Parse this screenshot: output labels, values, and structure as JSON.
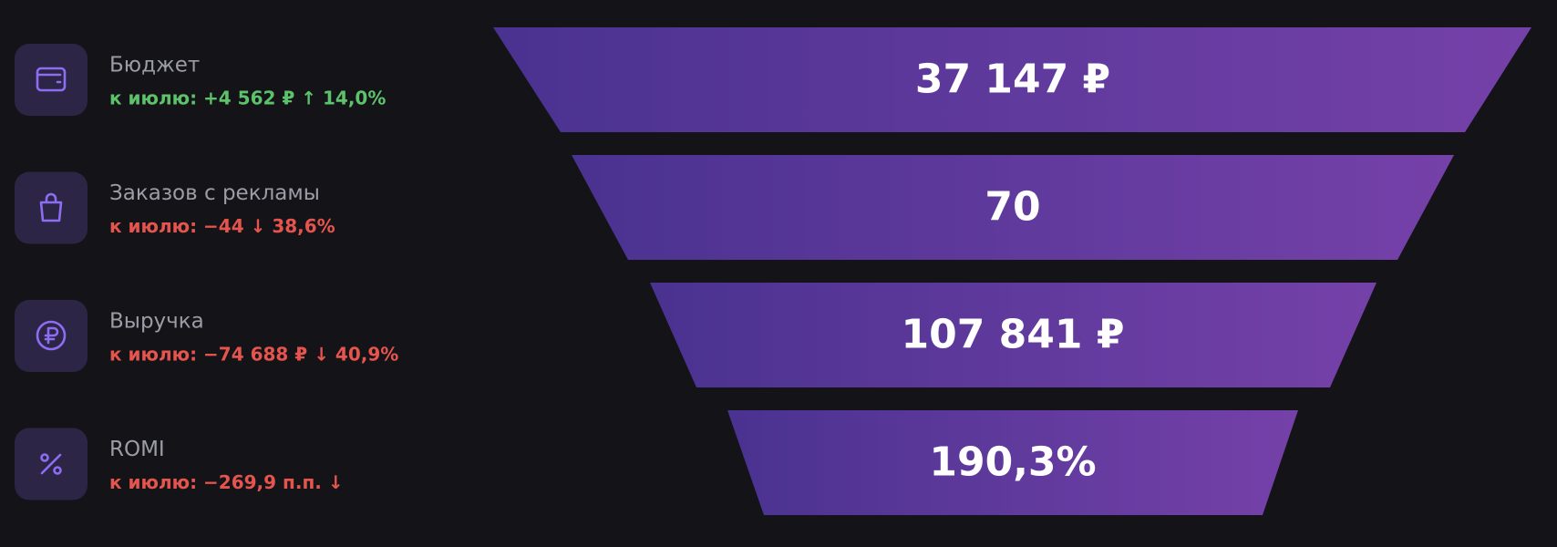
{
  "items": [
    {
      "label": "Бюджет",
      "delta": "к июлю: +4 562 ₽ ↑ 14,0%",
      "delta_color": "#5cc36a",
      "value": "37 147 ₽"
    },
    {
      "label": "Заказов с рекламы",
      "delta": "к июлю: −44 ↓ 38,6%",
      "delta_color": "#e5544d",
      "value": "70"
    },
    {
      "label": "Выручка",
      "delta": "к июлю: −74 688 ₽ ↓ 40,9%",
      "delta_color": "#e5544d",
      "value": "107 841 ₽"
    },
    {
      "label": "ROMI",
      "delta": "к июлю: −269,9 п.п. ↓",
      "delta_color": "#e5544d",
      "value": "190,3%"
    }
  ]
}
